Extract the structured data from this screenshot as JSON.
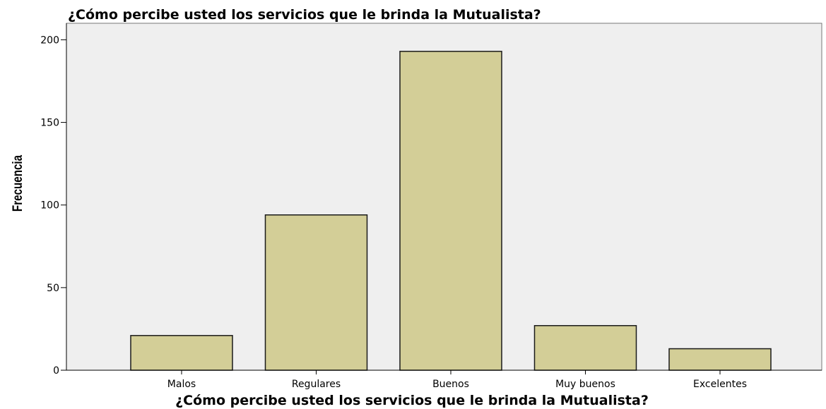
{
  "chart_data": {
    "type": "bar",
    "title": "¿Cómo percibe usted los servicios que le brinda la Mutualista?",
    "xlabel": "¿Cómo percibe usted los servicios que le brinda la Mutualista?",
    "ylabel": "Frecuencia",
    "categories": [
      "Malos",
      "Regulares",
      "Buenos",
      "Muy buenos",
      "Excelentes"
    ],
    "values": [
      21,
      94,
      193,
      27,
      13
    ],
    "ylim": [
      0,
      210
    ],
    "yticks": [
      0,
      50,
      100,
      150,
      200
    ],
    "grid": false,
    "colors": {
      "bar_fill": "#D3CE97",
      "bar_stroke": "#1a1a1a",
      "plot_background": "#EFEFEF",
      "axis": "#000000"
    }
  }
}
